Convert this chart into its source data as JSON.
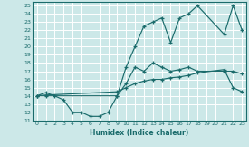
{
  "xlabel": "Humidex (Indice chaleur)",
  "bg_color": "#cce8e8",
  "grid_color": "#ffffff",
  "line_color": "#1a6b6b",
  "xlim": [
    -0.5,
    23.5
  ],
  "ylim": [
    11,
    25.5
  ],
  "xticks": [
    0,
    1,
    2,
    3,
    4,
    5,
    6,
    7,
    8,
    9,
    10,
    11,
    12,
    13,
    14,
    15,
    16,
    17,
    18,
    19,
    20,
    21,
    22,
    23
  ],
  "yticks": [
    11,
    12,
    13,
    14,
    15,
    16,
    17,
    18,
    19,
    20,
    21,
    22,
    23,
    24,
    25
  ],
  "line1_x": [
    0,
    1,
    2,
    3,
    4,
    5,
    6,
    7,
    8,
    9,
    10,
    11,
    12,
    13,
    14,
    15,
    16,
    17,
    18,
    21,
    22,
    23
  ],
  "line1_y": [
    14,
    14.4,
    14,
    13.5,
    12,
    12,
    11.5,
    11.5,
    12,
    14,
    15.5,
    17.5,
    17,
    18,
    17.5,
    17,
    17.2,
    17.5,
    17,
    17,
    17,
    16.7
  ],
  "line2_x": [
    0,
    1,
    9,
    10,
    11,
    12,
    13,
    14,
    15,
    16,
    17,
    18,
    21,
    22,
    23
  ],
  "line2_y": [
    14,
    14,
    14,
    17.5,
    20,
    22.5,
    23,
    23.5,
    20.5,
    23.5,
    24,
    25,
    21.5,
    25,
    22
  ],
  "line3_x": [
    0,
    1,
    9,
    10,
    11,
    12,
    13,
    14,
    15,
    16,
    17,
    18,
    21,
    22,
    23
  ],
  "line3_y": [
    14,
    14.1,
    14.5,
    15,
    15.5,
    15.8,
    16,
    16,
    16.2,
    16.3,
    16.5,
    16.8,
    17.2,
    15,
    14.5
  ]
}
